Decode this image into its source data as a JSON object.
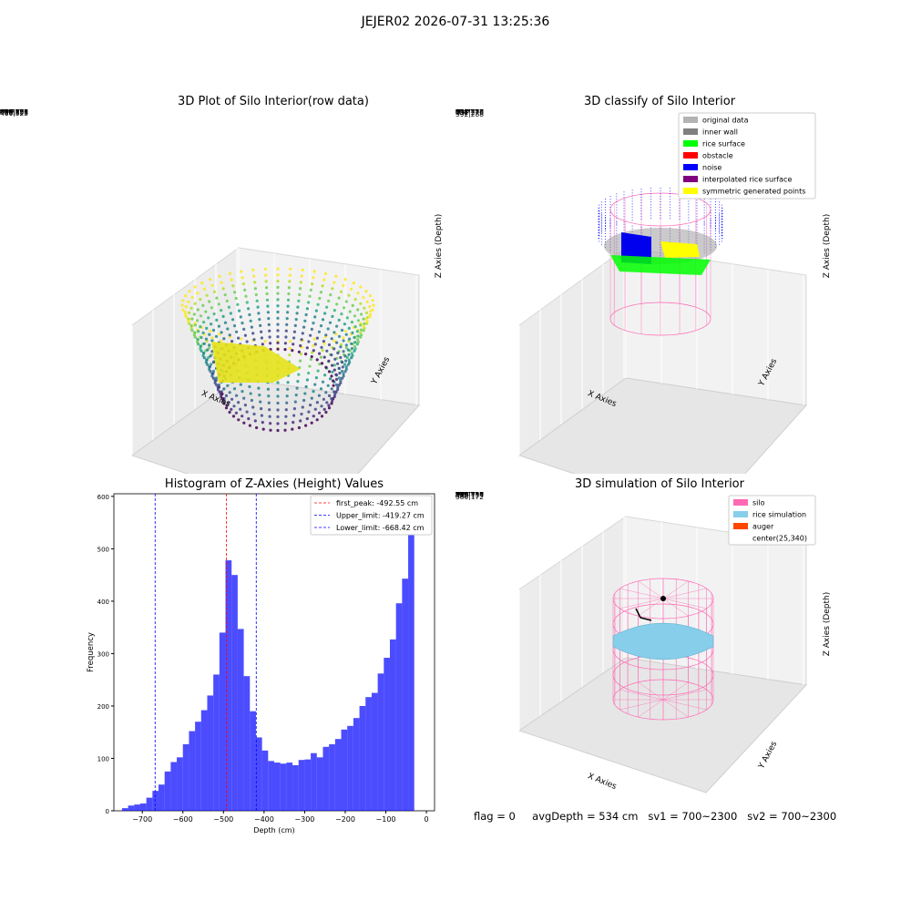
{
  "suptitle": "JEJER02 2026-07-31 13:25:36",
  "plots": {
    "raw": {
      "title": "3D Plot of Silo Interior(row data)",
      "xlabel": "X Axies",
      "ylabel": "Y Axies",
      "zlabel": "Z Axies (Depth)",
      "xticks": [
        "−400",
        "−200",
        "0",
        "200",
        "400"
      ],
      "yticks": [
        "0",
        "200",
        "400",
        "600",
        "800"
      ],
      "zticks": [
        "0",
        "−100",
        "−200",
        "−300",
        "−400",
        "−500",
        "−600",
        "−700"
      ]
    },
    "classify": {
      "title": "3D classify of Silo Interior",
      "xlabel": "X Axies",
      "ylabel": "Y Axies",
      "zlabel": "Z Axies (Depth)",
      "xticks": [
        "−600",
        "−400",
        "−200",
        "0",
        "200",
        "400",
        "600",
        "800"
      ],
      "yticks": [
        "−200",
        "0",
        "200",
        "400",
        "600",
        "800",
        "1000"
      ],
      "zticks": [
        "200",
        "0",
        "−200",
        "−400",
        "−600",
        "−800",
        "−1000",
        "−1200"
      ],
      "legend": [
        {
          "label": "original data",
          "color": "#b3b3b3"
        },
        {
          "label": "inner wall",
          "color": "#808080"
        },
        {
          "label": "rice surface",
          "color": "#00ff00"
        },
        {
          "label": "obstacle",
          "color": "#ff0000"
        },
        {
          "label": "noise",
          "color": "#0000ff"
        },
        {
          "label": "interpolated rice surface",
          "color": "#800080"
        },
        {
          "label": "symmetric generated points",
          "color": "#ffff00"
        }
      ]
    },
    "simulation": {
      "title": "3D simulation of Silo Interior",
      "xlabel": "X Axies",
      "ylabel": "Y Axies",
      "zlabel": "Z Axies (Depth)",
      "xticks": [
        "−600",
        "−400",
        "−200",
        "0",
        "200",
        "400",
        "600"
      ],
      "yticks": [
        "−400",
        "−200",
        "0",
        "200",
        "400",
        "600",
        "800",
        "1000"
      ],
      "zticks": [
        "200",
        "0",
        "−200",
        "−400",
        "−600",
        "−800",
        "−1000",
        "−1200"
      ],
      "legend": [
        {
          "label": "silo",
          "color": "#ff69b4"
        },
        {
          "label": "rice simulation",
          "color": "#87ceeb"
        },
        {
          "label": "auger",
          "color": "#ff4500"
        },
        {
          "label": "center(25,340)",
          "color": ""
        }
      ]
    }
  },
  "chart_data": {
    "type": "bar",
    "title": "Histogram of Z-Axies (Height) Values",
    "xlabel": "Depth (cm)",
    "ylabel": "Frequency",
    "xlim": [
      -770,
      20
    ],
    "ylim": [
      0,
      605
    ],
    "xticks": [
      -700,
      -600,
      -500,
      -400,
      -300,
      -200,
      -100,
      0
    ],
    "yticks": [
      0,
      100,
      200,
      300,
      400,
      500,
      600
    ],
    "bin_width": 15,
    "bin_start": -750,
    "values": [
      5,
      10,
      12,
      14,
      25,
      38,
      50,
      75,
      93,
      102,
      127,
      152,
      170,
      192,
      220,
      260,
      340,
      478,
      450,
      347,
      257,
      190,
      140,
      115,
      95,
      92,
      90,
      92,
      87,
      97,
      98,
      110,
      102,
      122,
      127,
      137,
      155,
      162,
      177,
      200,
      217,
      225,
      262,
      292,
      327,
      396,
      443,
      570
    ],
    "bar_color": "#0000ff",
    "lines": [
      {
        "label": "first_peak: -492.55 cm",
        "x": -492.55,
        "color": "#ff0000"
      },
      {
        "label": "Upper_limit: -419.27 cm",
        "x": -419.27,
        "color": "#0000ff"
      },
      {
        "label": "Lower_limit: -668.42 cm",
        "x": -668.42,
        "color": "#0000ff"
      }
    ],
    "legend_position": "top-right"
  },
  "status": {
    "flag": "flag = 0",
    "avg_depth": "avgDepth = 534 cm",
    "sv1": "sv1 = 700~2300",
    "sv2": "sv2 = 700~2300"
  }
}
